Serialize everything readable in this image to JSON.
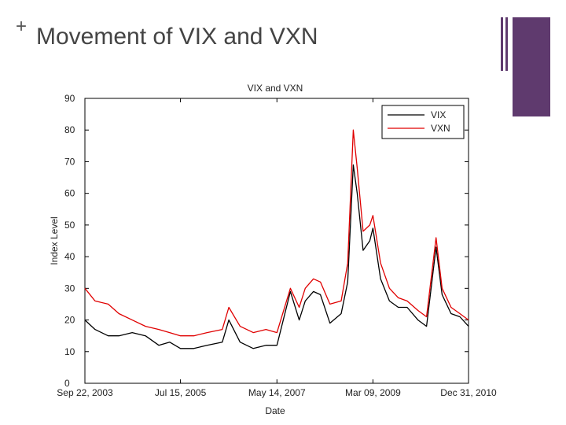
{
  "slide": {
    "bullet": "+",
    "title": "Movement of VIX and VXN"
  },
  "colors": {
    "accent": "#5f3a6e",
    "vix": "#000000",
    "vxn": "#e00000"
  },
  "chart_data": {
    "type": "line",
    "title": "VIX and VXN",
    "xlabel": "Date",
    "ylabel": "Index Level",
    "ylim": [
      0,
      90
    ],
    "yticks": [
      0,
      10,
      20,
      30,
      40,
      50,
      60,
      70,
      80,
      90
    ],
    "xticks": [
      "Sep 22, 2003",
      "Jul 15, 2005",
      "May 14, 2007",
      "Mar 09, 2009",
      "Dec 31, 2010"
    ],
    "xrange": [
      "Sep 22, 2003",
      "Dec 31, 2010"
    ],
    "legend": "top-right",
    "grid": false,
    "series": [
      {
        "name": "VIX",
        "color": "#000000",
        "x": [
          "2003-09-22",
          "2003-12-01",
          "2004-03-01",
          "2004-05-15",
          "2004-08-15",
          "2004-11-15",
          "2005-02-15",
          "2005-05-01",
          "2005-07-15",
          "2005-10-15",
          "2006-01-15",
          "2006-05-01",
          "2006-06-15",
          "2006-09-01",
          "2006-12-01",
          "2007-02-27",
          "2007-05-14",
          "2007-08-15",
          "2007-10-15",
          "2007-11-26",
          "2008-01-22",
          "2008-03-10",
          "2008-05-15",
          "2008-08-01",
          "2008-09-15",
          "2008-10-24",
          "2008-11-20",
          "2008-12-31",
          "2009-02-15",
          "2009-03-09",
          "2009-05-01",
          "2009-07-01",
          "2009-09-01",
          "2009-11-01",
          "2010-01-15",
          "2010-03-15",
          "2010-05-20",
          "2010-07-01",
          "2010-09-01",
          "2010-11-01",
          "2010-12-31"
        ],
        "values": [
          20,
          17,
          15,
          15,
          16,
          15,
          12,
          13,
          11,
          11,
          12,
          13,
          20,
          13,
          11,
          12,
          12,
          29,
          20,
          26,
          29,
          28,
          19,
          22,
          32,
          69,
          60,
          42,
          45,
          49,
          33,
          26,
          24,
          24,
          20,
          18,
          43,
          28,
          22,
          21,
          18
        ]
      },
      {
        "name": "VXN",
        "color": "#e00000",
        "x": [
          "2003-09-22",
          "2003-12-01",
          "2004-03-01",
          "2004-05-15",
          "2004-08-15",
          "2004-11-15",
          "2005-02-15",
          "2005-05-01",
          "2005-07-15",
          "2005-10-15",
          "2006-01-15",
          "2006-05-01",
          "2006-06-15",
          "2006-09-01",
          "2006-12-01",
          "2007-02-27",
          "2007-05-14",
          "2007-08-15",
          "2007-10-15",
          "2007-11-26",
          "2008-01-22",
          "2008-03-10",
          "2008-05-15",
          "2008-08-01",
          "2008-09-15",
          "2008-10-24",
          "2008-11-20",
          "2008-12-31",
          "2009-02-15",
          "2009-03-09",
          "2009-05-01",
          "2009-07-01",
          "2009-09-01",
          "2009-11-01",
          "2010-01-15",
          "2010-03-15",
          "2010-05-20",
          "2010-07-01",
          "2010-09-01",
          "2010-11-01",
          "2010-12-31"
        ],
        "values": [
          30,
          26,
          25,
          22,
          20,
          18,
          17,
          16,
          15,
          15,
          16,
          17,
          24,
          18,
          16,
          17,
          16,
          30,
          24,
          30,
          33,
          32,
          25,
          26,
          38,
          80,
          68,
          48,
          50,
          53,
          38,
          30,
          27,
          26,
          23,
          21,
          46,
          30,
          24,
          22,
          20
        ]
      }
    ]
  }
}
